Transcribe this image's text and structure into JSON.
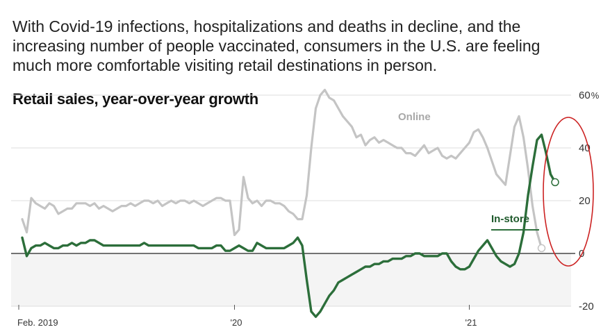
{
  "intro_text": "With Covid-19 infections, hospitalizations and deaths in decline, and the increasing number of people vaccinated, consumers in the U.S. are feeling much more comfortable visiting retail destinations in person.",
  "colors": {
    "online": "#c4c4c4",
    "in_store": "#2c6e3a",
    "highlight_circle": "#cc2222",
    "negative_band": "#f4f4f4",
    "gridline": "#dddddd",
    "zero_line": "#222222"
  },
  "chart_data": {
    "type": "line",
    "title": "Retail sales, year-over-year growth",
    "y_unit_label": "%",
    "ylim": [
      -20,
      60
    ],
    "y_ticks": [
      {
        "value": 60,
        "label": "60"
      },
      {
        "value": 40,
        "label": "40"
      },
      {
        "value": 20,
        "label": "20"
      },
      {
        "value": 0,
        "label": "0"
      },
      {
        "value": -20,
        "label": "-20"
      }
    ],
    "x_ticks": [
      {
        "week": 0,
        "label": "Feb. 2019"
      },
      {
        "week": 47,
        "label": "'20"
      },
      {
        "week": 99,
        "label": "'21"
      }
    ],
    "x_range": [
      0,
      122
    ],
    "series": [
      {
        "name": "Online",
        "label": "Online",
        "end_marker": true,
        "values": [
          13,
          8,
          21,
          19,
          18,
          17,
          19,
          18,
          15,
          16,
          17,
          17,
          19,
          19,
          19,
          18,
          19,
          17,
          18,
          17,
          16,
          17,
          18,
          18,
          19,
          18,
          19,
          20,
          20,
          19,
          20,
          18,
          19,
          20,
          19,
          20,
          20,
          19,
          20,
          19,
          18,
          19,
          20,
          21,
          21,
          20,
          20,
          7,
          9,
          29,
          21,
          19,
          20,
          18,
          20,
          20,
          19,
          19,
          18,
          16,
          15,
          13,
          13,
          22,
          40,
          55,
          60,
          62,
          59,
          58,
          55,
          52,
          50,
          48,
          44,
          45,
          41,
          43,
          44,
          42,
          43,
          42,
          41,
          40,
          40,
          38,
          38,
          37,
          39,
          41,
          38,
          39,
          40,
          37,
          36,
          37,
          36,
          38,
          40,
          42,
          46,
          47,
          44,
          40,
          35,
          30,
          28,
          26,
          37,
          48,
          52,
          44,
          32,
          18,
          8,
          2
        ]
      },
      {
        "name": "In-store",
        "label": "In-store",
        "end_marker": true,
        "values": [
          6,
          -1,
          2,
          3,
          3,
          4,
          3,
          2,
          2,
          3,
          3,
          4,
          3,
          4,
          4,
          5,
          5,
          4,
          3,
          3,
          3,
          3,
          3,
          3,
          3,
          3,
          3,
          4,
          3,
          3,
          3,
          3,
          3,
          3,
          3,
          3,
          3,
          3,
          3,
          2,
          2,
          2,
          2,
          3,
          3,
          1,
          1,
          2,
          3,
          2,
          1,
          1,
          4,
          3,
          2,
          2,
          2,
          2,
          2,
          3,
          4,
          6,
          3,
          -10,
          -22,
          -24,
          -22,
          -19,
          -16,
          -14,
          -11,
          -10,
          -9,
          -8,
          -7,
          -6,
          -5,
          -5,
          -4,
          -4,
          -3,
          -3,
          -2,
          -2,
          -2,
          -1,
          -1,
          0,
          0,
          -1,
          -1,
          -1,
          -1,
          0,
          0,
          -3,
          -5,
          -6,
          -6,
          -5,
          -2,
          1,
          3,
          5,
          2,
          -1,
          -3,
          -4,
          -5,
          -4,
          0,
          8,
          22,
          33,
          43,
          45,
          38,
          30,
          27
        ]
      }
    ]
  }
}
